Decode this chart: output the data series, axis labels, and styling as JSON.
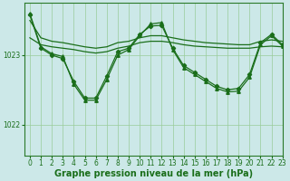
{
  "background_color": "#cce8e8",
  "plot_bg_color": "#cce8e8",
  "grid_color": "#99cc99",
  "line_color": "#1a6e1a",
  "xlabel": "Graphe pression niveau de la mer (hPa)",
  "xlabel_fontsize": 7,
  "tick_fontsize": 5.5,
  "ylim": [
    1021.55,
    1023.75
  ],
  "yticks": [
    1022,
    1023
  ],
  "xlim": [
    -0.5,
    23
  ],
  "xticks": [
    0,
    1,
    2,
    3,
    4,
    5,
    6,
    7,
    8,
    9,
    10,
    11,
    12,
    13,
    14,
    15,
    16,
    17,
    18,
    19,
    20,
    21,
    22,
    23
  ],
  "series": [
    {
      "x": [
        0,
        1,
        2,
        3,
        4,
        5,
        6,
        7,
        8,
        9,
        10,
        11,
        12,
        13,
        14,
        15,
        16,
        17,
        18,
        19,
        20,
        21,
        22,
        23
      ],
      "y": [
        1023.5,
        1023.25,
        1023.2,
        1023.18,
        1023.15,
        1023.12,
        1023.1,
        1023.12,
        1023.18,
        1023.2,
        1023.25,
        1023.28,
        1023.28,
        1023.25,
        1023.22,
        1023.2,
        1023.18,
        1023.17,
        1023.16,
        1023.15,
        1023.15,
        1023.2,
        1023.22,
        1023.2
      ],
      "marker": null,
      "lw": 0.9
    },
    {
      "x": [
        0,
        1,
        2,
        3,
        4,
        5,
        6,
        7,
        8,
        9,
        10,
        11,
        12,
        13,
        14,
        15,
        16,
        17,
        18,
        19,
        20,
        21,
        22,
        23
      ],
      "y": [
        1023.25,
        1023.15,
        1023.12,
        1023.1,
        1023.08,
        1023.05,
        1023.03,
        1023.05,
        1023.1,
        1023.13,
        1023.18,
        1023.2,
        1023.2,
        1023.18,
        1023.15,
        1023.13,
        1023.12,
        1023.11,
        1023.1,
        1023.1,
        1023.1,
        1023.12,
        1023.13,
        1023.12
      ],
      "marker": null,
      "lw": 0.9
    },
    {
      "x": [
        0,
        1,
        2,
        3,
        4,
        5,
        6,
        7,
        8,
        9,
        10,
        11,
        12,
        13,
        14,
        15,
        16,
        17,
        18,
        19,
        20,
        21,
        22,
        23
      ],
      "y": [
        1023.58,
        1023.1,
        1023.0,
        1022.95,
        1022.62,
        1022.38,
        1022.38,
        1022.7,
        1023.05,
        1023.1,
        1023.3,
        1023.42,
        1023.43,
        1023.1,
        1022.85,
        1022.75,
        1022.65,
        1022.55,
        1022.5,
        1022.52,
        1022.72,
        1023.18,
        1023.3,
        1023.15
      ],
      "marker": "D",
      "ms": 2.2,
      "lw": 0.9
    },
    {
      "x": [
        0,
        1,
        2,
        3,
        4,
        5,
        6,
        7,
        8,
        9,
        10,
        11,
        12,
        13,
        14,
        15,
        16,
        17,
        18,
        19,
        20,
        21,
        22,
        23
      ],
      "y": [
        1023.6,
        1023.12,
        1023.02,
        1022.98,
        1022.58,
        1022.35,
        1022.35,
        1022.65,
        1023.0,
        1023.08,
        1023.28,
        1023.45,
        1023.47,
        1023.08,
        1022.82,
        1022.72,
        1022.62,
        1022.52,
        1022.47,
        1022.48,
        1022.68,
        1023.15,
        1023.28,
        1023.13
      ],
      "marker": "^",
      "ms": 2.5,
      "lw": 0.9
    }
  ]
}
